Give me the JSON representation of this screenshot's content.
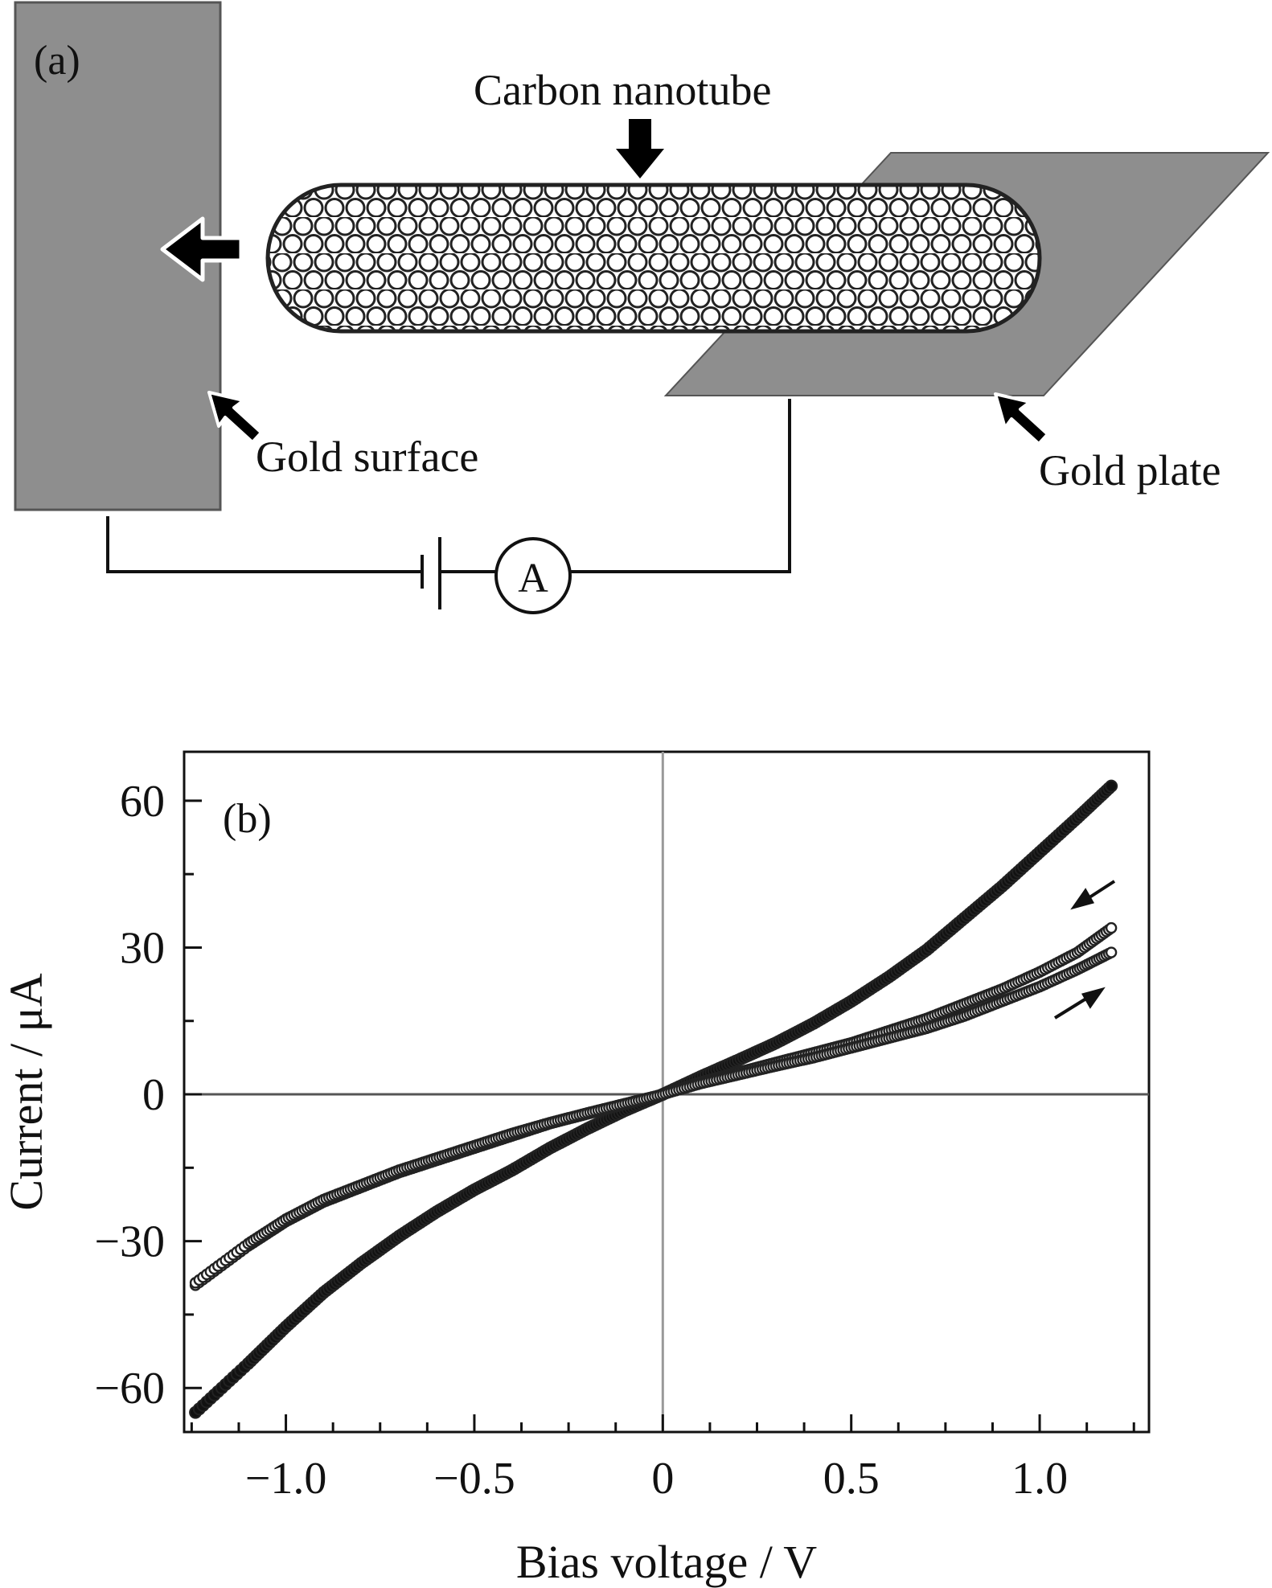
{
  "panel_a": {
    "label": "(a)",
    "nanotube_label": "Carbon nanotube",
    "gold_surface_label": "Gold surface",
    "gold_plate_label": "Gold plate",
    "ammeter_label": "A"
  },
  "chart_data": {
    "type": "scatter",
    "panel_label": "(b)",
    "xlabel": "Bias voltage / V",
    "ylabel": "Current / μA",
    "xlim": [
      -1.27,
      1.29
    ],
    "ylim": [
      -69,
      70
    ],
    "xticks": [
      -1.0,
      -0.5,
      0,
      0.5,
      1.0
    ],
    "xtick_labels": [
      "−1.0",
      "−0.5",
      "0",
      "0.5",
      "1.0"
    ],
    "yticks": [
      -60,
      -30,
      0,
      30,
      60
    ],
    "ytick_labels": [
      "−60",
      "−30",
      "0",
      "30",
      "60"
    ],
    "zero_lines": true,
    "series": [
      {
        "style": "filled",
        "x": [
          -1.24,
          -1.1,
          -1.0,
          -0.9,
          -0.8,
          -0.7,
          -0.6,
          -0.5,
          -0.4,
          -0.3,
          -0.2,
          -0.1,
          0.0,
          0.1,
          0.2,
          0.3,
          0.4,
          0.5,
          0.6,
          0.7,
          0.8,
          0.9,
          1.0,
          1.1,
          1.19
        ],
        "y": [
          -65,
          -55,
          -47.5,
          -40.5,
          -34.5,
          -29,
          -24,
          -19.5,
          -15.5,
          -11,
          -7,
          -3.3,
          0,
          3.6,
          7,
          10.5,
          14.5,
          19,
          24,
          29.5,
          36,
          42.5,
          49.5,
          56.5,
          63
        ]
      },
      {
        "style": "open",
        "x": [
          -1.24,
          -1.1,
          -1.0,
          -0.9,
          -0.8,
          -0.7,
          -0.6,
          -0.5,
          -0.4,
          -0.3,
          -0.2,
          -0.1,
          0.0,
          0.1,
          0.2,
          0.3,
          0.4,
          0.5,
          0.6,
          0.7,
          0.8,
          0.9,
          1.0,
          1.1,
          1.19
        ],
        "y": [
          -39,
          -31,
          -26,
          -22,
          -19,
          -16,
          -13.5,
          -11,
          -8.5,
          -6,
          -4,
          -2,
          0,
          2.5,
          4.5,
          6.5,
          8.5,
          10.5,
          13,
          15.5,
          18.5,
          21.5,
          25,
          29,
          34
        ]
      },
      {
        "style": "open",
        "x": [
          -1.24,
          -1.1,
          -1.0,
          -0.9,
          -0.8,
          -0.7,
          -0.6,
          -0.5,
          -0.4,
          -0.3,
          -0.2,
          -0.1,
          0.0,
          0.1,
          0.2,
          0.3,
          0.4,
          0.5,
          0.6,
          0.7,
          0.8,
          0.9,
          1.0,
          1.1,
          1.19
        ],
        "y": [
          -38.5,
          -30.5,
          -25.5,
          -21.5,
          -18.5,
          -15.5,
          -13,
          -10.5,
          -8,
          -5.8,
          -3.8,
          -1.9,
          0,
          2.2,
          4,
          5.8,
          7.5,
          9.5,
          11.5,
          13.5,
          16,
          19,
          22,
          25.5,
          29
        ]
      }
    ],
    "annotations": [
      "arrow-sweep-back",
      "arrow-sweep-forward"
    ]
  }
}
